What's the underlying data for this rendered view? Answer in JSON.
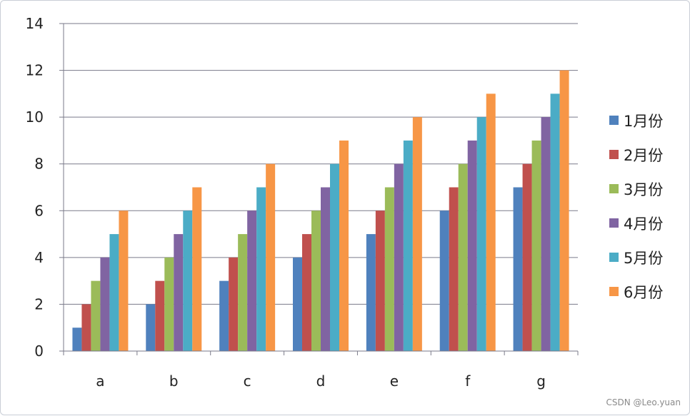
{
  "chart_data": {
    "type": "bar",
    "categories": [
      "a",
      "b",
      "c",
      "d",
      "e",
      "f",
      "g"
    ],
    "series": [
      {
        "name": "1月份",
        "values": [
          1,
          2,
          3,
          4,
          5,
          6,
          7
        ],
        "color": "#4f81bd"
      },
      {
        "name": "2月份",
        "values": [
          2,
          3,
          4,
          5,
          6,
          7,
          8
        ],
        "color": "#c0504d"
      },
      {
        "name": "3月份",
        "values": [
          3,
          4,
          5,
          6,
          7,
          8,
          9
        ],
        "color": "#9bbb59"
      },
      {
        "name": "4月份",
        "values": [
          4,
          5,
          6,
          7,
          8,
          9,
          10
        ],
        "color": "#8064a2"
      },
      {
        "name": "5月份",
        "values": [
          5,
          6,
          7,
          8,
          9,
          10,
          11
        ],
        "color": "#4bacc6"
      },
      {
        "name": "6月份",
        "values": [
          6,
          7,
          8,
          9,
          10,
          11,
          12
        ],
        "color": "#f79646"
      }
    ],
    "ylim": [
      0,
      14
    ],
    "yticks": [
      0,
      2,
      4,
      6,
      8,
      10,
      12,
      14
    ],
    "grid": true,
    "legend_position": "right",
    "title": "",
    "xlabel": "",
    "ylabel": ""
  },
  "watermark": "CSDN @Leo.yuan"
}
